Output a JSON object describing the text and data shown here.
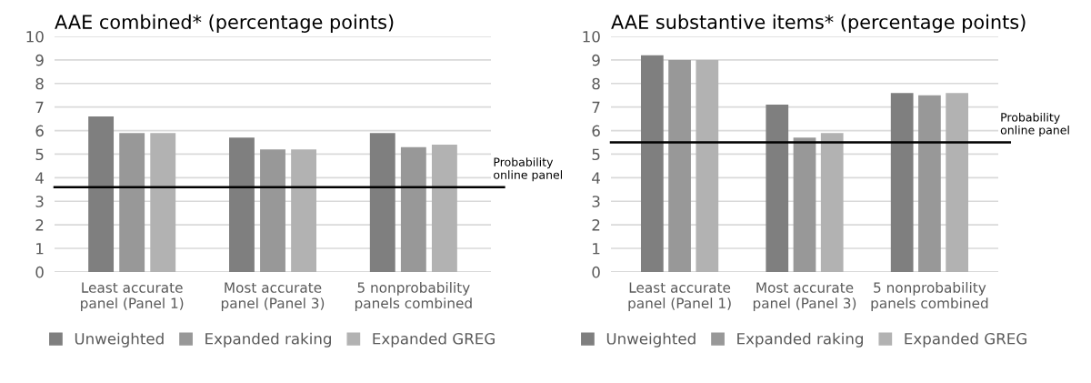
{
  "chart_data": [
    {
      "type": "bar",
      "title": "AAE combined* (percentage points)",
      "categories": [
        "Least accurate\npanel (Panel 1)",
        "Most accurate\npanel (Panel 3)",
        "5 nonprobability\npanels combined"
      ],
      "series": [
        {
          "name": "Unweighted",
          "color": "#7f7f7f",
          "values": [
            6.6,
            5.7,
            5.9
          ]
        },
        {
          "name": "Expanded raking",
          "color": "#989898",
          "values": [
            5.9,
            5.2,
            5.3
          ]
        },
        {
          "name": "Expanded GREG",
          "color": "#b2b2b2",
          "values": [
            5.9,
            5.2,
            5.4
          ]
        }
      ],
      "ylim": [
        0,
        10
      ],
      "yticks": [
        0,
        1,
        2,
        3,
        4,
        5,
        6,
        7,
        8,
        9,
        10
      ],
      "grid": "y",
      "legend": "bottom",
      "ref_lines": [
        {
          "axis": "y",
          "value": 3.6,
          "label": "Probability\nonline panel",
          "color": "#000000"
        }
      ]
    },
    {
      "type": "bar",
      "title": "AAE substantive items* (percentage points)",
      "categories": [
        "Least accurate\npanel (Panel 1)",
        "Most accurate\npanel (Panel 3)",
        "5 nonprobability\npanels combined"
      ],
      "series": [
        {
          "name": "Unweighted",
          "color": "#7f7f7f",
          "values": [
            9.2,
            7.1,
            7.6
          ]
        },
        {
          "name": "Expanded raking",
          "color": "#989898",
          "values": [
            9.0,
            5.7,
            7.5
          ]
        },
        {
          "name": "Expanded GREG",
          "color": "#b2b2b2",
          "values": [
            9.0,
            5.9,
            7.6
          ]
        }
      ],
      "ylim": [
        0,
        10
      ],
      "yticks": [
        0,
        1,
        2,
        3,
        4,
        5,
        6,
        7,
        8,
        9,
        10
      ],
      "grid": "y",
      "legend": "bottom",
      "ref_lines": [
        {
          "axis": "y",
          "value": 5.5,
          "label": "Probability\nonline panel",
          "color": "#000000"
        }
      ]
    }
  ]
}
